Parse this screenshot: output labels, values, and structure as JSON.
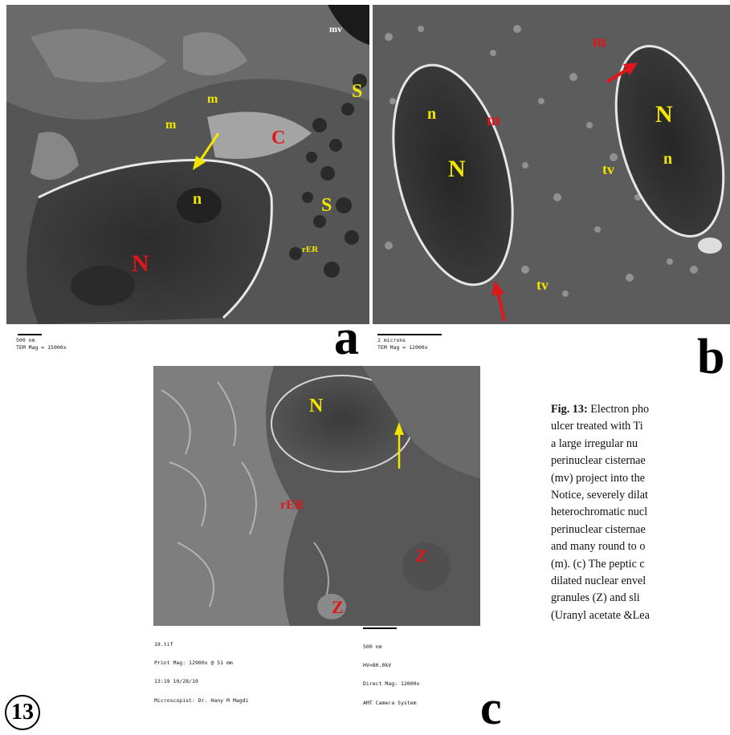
{
  "figure": {
    "number_badge": "13",
    "panels": {
      "a": {
        "letter": "a",
        "scale_text": "500 nm",
        "mag_text": "TEM Mag = 15000x",
        "labels": {
          "mv": "mv",
          "S1": "S",
          "S2": "S",
          "m1": "m",
          "m2": "m",
          "C": "C",
          "n": "n",
          "N": "N",
          "rER": "rER"
        }
      },
      "b": {
        "letter": "b",
        "scale_text": "2 microns",
        "mag_text": "TEM Mag = 12000x",
        "labels": {
          "m1": "m",
          "m2": "m",
          "n1": "n",
          "N1": "N",
          "N2": "N",
          "n2": "n",
          "tv1": "tv",
          "tv2": "tv"
        }
      },
      "c": {
        "letter": "c",
        "info_left": [
          "19.tif",
          "Print Mag: 12900x @ 51 mm",
          "13:19 10/28/19",
          "Microscopist: Dr. Hany M Magdi"
        ],
        "info_right": [
          "500 nm",
          "HV=80.0kV",
          "Direct Mag: 12000x",
          "AMT Camera System"
        ],
        "labels": {
          "N": "N",
          "rER": "rER",
          "Z1": "Z",
          "Z2": "Z"
        }
      }
    },
    "caption": {
      "prefix": "Fig. 13:",
      "lines": [
        " Electron pho",
        "ulcer treated with Ti",
        "a large irregular nu",
        "perinuclear cisternae",
        "(mv) project into the",
        "Notice, severely dilat",
        "heterochromatic nucl",
        "perinuclear cisternae",
        "and many round to o",
        "(m). (c) The peptic c",
        "dilated nuclear envel",
        "granules (Z) and sli",
        "(Uranyl acetate &Lea"
      ]
    },
    "colors": {
      "label_yellow": "#f2e600",
      "label_red": "#e0161b",
      "arrow_yellow": "#f2e600",
      "arrow_red": "#e0161b"
    }
  }
}
